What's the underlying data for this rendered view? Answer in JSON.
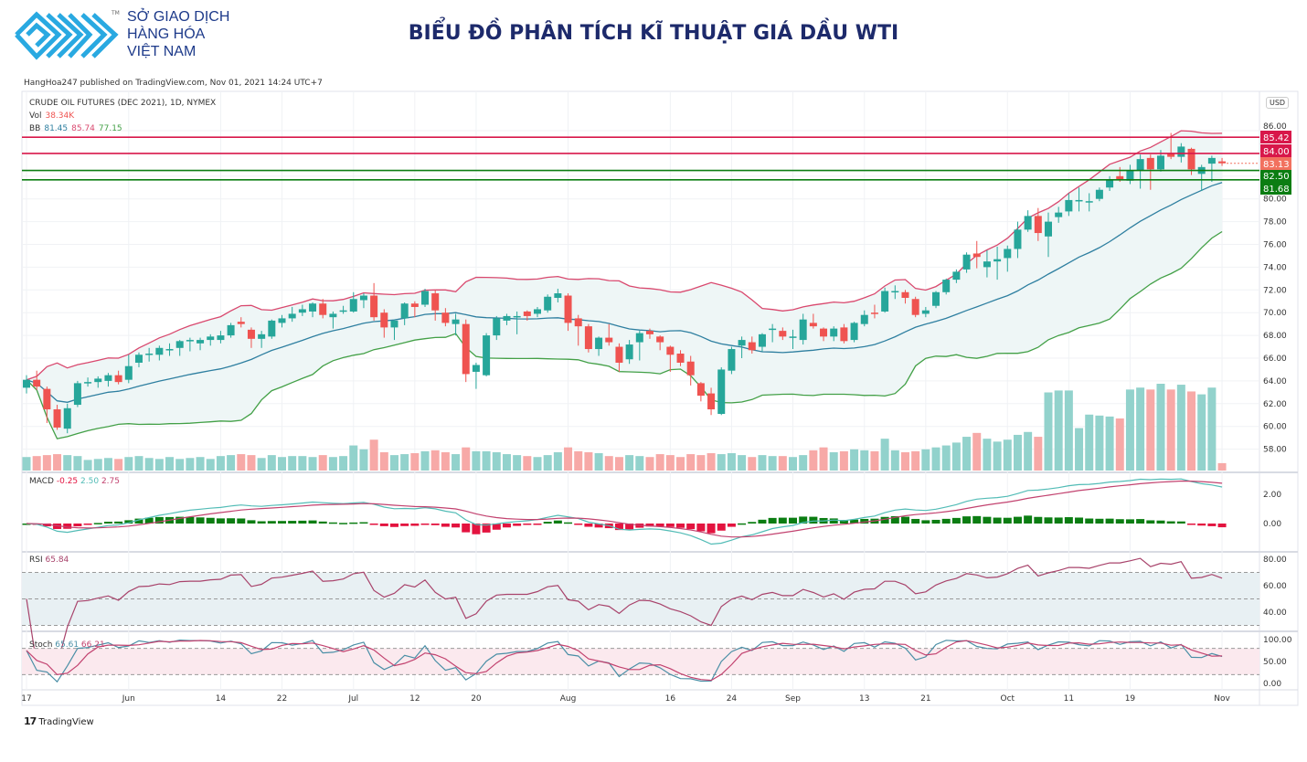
{
  "header": {
    "logo_text_line1": "SỞ GIAO DỊCH",
    "logo_text_line2": "HÀNG HÓA",
    "logo_text_line3": "VIỆT NAM",
    "logo_tm": "TM",
    "title": "BIỂU ĐỒ PHÂN TÍCH KĨ THUẬT GIÁ DẦU WTI",
    "published": "HangHoa247 published on TradingView.com, Nov 01, 2021 14:24 UTC+7"
  },
  "footer": {
    "brand": "TradingView",
    "brand_mark": "17"
  },
  "colors": {
    "up": "#26a69a",
    "down": "#ef5350",
    "vol_up": "#92d2cc",
    "vol_down": "#f7a9a7",
    "bb_upper": "#d9486e",
    "bb_basis": "#2e7fa0",
    "bb_lower": "#43a047",
    "bb_fill": "#eef6f6",
    "resistance": "#d8174a",
    "support": "#0b7d12",
    "macd": "#52bcb6",
    "signal": "#c2426f",
    "hist_pos": "#0b7d12",
    "hist_neg": "#e3133f",
    "rsi": "#a8436b",
    "stoch_k": "#4a8fa6",
    "stoch_d": "#c2426f"
  },
  "chart_data": {
    "type": "candlestick",
    "symbol": "CRUDE OIL FUTURES (DEC 2021), 1D, NYMEX",
    "currency": "USD",
    "legend": {
      "vol_label": "Vol",
      "vol_value": "38.34K",
      "bb_label": "BB",
      "bb_basis": "81.45",
      "bb_upper": "85.74",
      "bb_lower": "77.15",
      "macd_label": "MACD",
      "macd_hist": "-0.25",
      "macd_line": "2.50",
      "macd_signal": "2.75",
      "rsi_label": "RSI",
      "rsi_value": "65.84",
      "stoch_label": "Stoch",
      "stoch_k": "65.61",
      "stoch_d": "66.21"
    },
    "price_axis": {
      "ylim": [
        56.5,
        87
      ],
      "ticks": [
        "86.00",
        "80.00",
        "78.00",
        "76.00",
        "74.00",
        "72.00",
        "70.00",
        "68.00",
        "66.00",
        "64.00",
        "62.00",
        "60.00",
        "58.00"
      ]
    },
    "macd_axis": {
      "ticks": [
        "2.00",
        "0.00"
      ]
    },
    "rsi_axis": {
      "ticks": [
        "80.00",
        "60.00",
        "40.00"
      ],
      "bands": [
        70,
        50,
        30
      ]
    },
    "stoch_axis": {
      "ticks": [
        "100.00",
        "50.00",
        "0.00"
      ],
      "bands": [
        80,
        20
      ]
    },
    "levels": [
      {
        "value": 85.42,
        "label": "85.42",
        "kind": "resistance"
      },
      {
        "value": 84.0,
        "label": "84.00",
        "kind": "resistance"
      },
      {
        "value": 82.5,
        "label": "82.50",
        "kind": "support"
      },
      {
        "value": 81.68,
        "label": "81.68",
        "kind": "support"
      }
    ],
    "last_price": {
      "value": 83.13,
      "label": "83.13"
    },
    "x_labels": [
      {
        "label": "17",
        "at": 0
      },
      {
        "label": "Jun",
        "at": 10
      },
      {
        "label": "14",
        "at": 19
      },
      {
        "label": "22",
        "at": 25
      },
      {
        "label": "Jul",
        "at": 32
      },
      {
        "label": "12",
        "at": 38
      },
      {
        "label": "20",
        "at": 44
      },
      {
        "label": "Aug",
        "at": 53
      },
      {
        "label": "16",
        "at": 63
      },
      {
        "label": "24",
        "at": 69
      },
      {
        "label": "Sep",
        "at": 75
      },
      {
        "label": "13",
        "at": 82
      },
      {
        "label": "21",
        "at": 88
      },
      {
        "label": "Oct",
        "at": 96
      },
      {
        "label": "11",
        "at": 102
      },
      {
        "label": "19",
        "at": 108
      },
      {
        "label": "Nov",
        "at": 117
      }
    ],
    "ohlc": [
      [
        63.4,
        64.5,
        62.9,
        64.1
      ],
      [
        64.1,
        64.9,
        63.2,
        63.5
      ],
      [
        63.3,
        63.5,
        60.3,
        61.5
      ],
      [
        61.5,
        61.9,
        59.7,
        59.9
      ],
      [
        59.8,
        62.0,
        59.4,
        61.6
      ],
      [
        61.9,
        64.0,
        61.7,
        63.8
      ],
      [
        63.9,
        64.3,
        63.5,
        63.9
      ],
      [
        63.9,
        64.4,
        63.4,
        64.2
      ],
      [
        64.0,
        64.7,
        63.5,
        64.5
      ],
      [
        64.5,
        64.9,
        63.7,
        63.9
      ],
      [
        64.1,
        66.3,
        63.8,
        65.3
      ],
      [
        65.6,
        66.5,
        65.2,
        66.3
      ],
      [
        66.4,
        66.9,
        65.7,
        66.4
      ],
      [
        66.3,
        67.1,
        65.8,
        66.9
      ],
      [
        66.8,
        67.3,
        66.2,
        66.8
      ],
      [
        66.9,
        67.6,
        66.2,
        67.5
      ],
      [
        67.6,
        67.8,
        66.6,
        67.6
      ],
      [
        67.3,
        67.8,
        66.7,
        67.6
      ],
      [
        67.6,
        68.1,
        67.1,
        67.9
      ],
      [
        67.6,
        68.4,
        67.3,
        68.0
      ],
      [
        68.0,
        69.1,
        67.8,
        68.9
      ],
      [
        69.2,
        69.6,
        68.7,
        69.0
      ],
      [
        68.5,
        68.7,
        66.9,
        67.7
      ],
      [
        67.7,
        68.4,
        66.9,
        68.1
      ],
      [
        67.9,
        69.4,
        67.7,
        69.3
      ],
      [
        69.1,
        69.8,
        68.7,
        69.5
      ],
      [
        69.5,
        70.5,
        69.2,
        69.9
      ],
      [
        70.0,
        70.7,
        69.7,
        70.3
      ],
      [
        70.1,
        70.9,
        69.6,
        70.8
      ],
      [
        70.8,
        71.2,
        69.5,
        69.8
      ],
      [
        69.6,
        70.1,
        68.6,
        69.9
      ],
      [
        70.2,
        70.6,
        69.9,
        70.2
      ],
      [
        70.1,
        71.8,
        70.0,
        71.2
      ],
      [
        71.1,
        71.7,
        70.4,
        71.5
      ],
      [
        71.5,
        72.6,
        69.3,
        69.6
      ],
      [
        70.0,
        70.3,
        67.8,
        68.7
      ],
      [
        68.7,
        69.4,
        67.6,
        69.3
      ],
      [
        69.5,
        70.9,
        68.9,
        70.8
      ],
      [
        70.8,
        71.0,
        69.6,
        70.5
      ],
      [
        70.7,
        72.1,
        70.5,
        71.9
      ],
      [
        71.7,
        72.0,
        69.3,
        70.2
      ],
      [
        70.0,
        70.4,
        68.8,
        69.1
      ],
      [
        69.0,
        69.9,
        68.0,
        69.4
      ],
      [
        69.0,
        69.4,
        63.9,
        64.6
      ],
      [
        64.8,
        65.6,
        63.3,
        65.4
      ],
      [
        64.5,
        68.2,
        64.4,
        68.0
      ],
      [
        68.0,
        69.7,
        67.6,
        69.5
      ],
      [
        69.3,
        69.9,
        68.9,
        69.7
      ],
      [
        69.7,
        70.1,
        68.1,
        69.7
      ],
      [
        70.1,
        70.2,
        69.3,
        69.7
      ],
      [
        69.9,
        70.5,
        69.6,
        70.3
      ],
      [
        70.2,
        71.6,
        70.0,
        71.4
      ],
      [
        71.3,
        72.1,
        70.9,
        71.7
      ],
      [
        71.5,
        71.7,
        68.4,
        69.1
      ],
      [
        69.5,
        69.8,
        67.1,
        68.8
      ],
      [
        68.8,
        69.0,
        66.5,
        66.8
      ],
      [
        66.8,
        67.9,
        66.2,
        67.8
      ],
      [
        67.8,
        69.0,
        67.1,
        67.4
      ],
      [
        67.0,
        67.3,
        64.8,
        65.6
      ],
      [
        65.9,
        67.6,
        65.5,
        67.2
      ],
      [
        67.4,
        68.4,
        65.8,
        68.2
      ],
      [
        68.4,
        68.6,
        67.7,
        68.1
      ],
      [
        67.9,
        68.0,
        66.7,
        67.4
      ],
      [
        67.0,
        67.1,
        64.8,
        66.3
      ],
      [
        66.4,
        66.7,
        65.3,
        65.6
      ],
      [
        65.7,
        66.2,
        63.6,
        64.5
      ],
      [
        63.8,
        63.9,
        62.2,
        62.7
      ],
      [
        62.9,
        63.4,
        61.0,
        61.5
      ],
      [
        61.1,
        65.2,
        61.0,
        65.0
      ],
      [
        64.9,
        67.0,
        64.6,
        66.8
      ],
      [
        67.1,
        67.9,
        66.0,
        67.6
      ],
      [
        67.4,
        67.9,
        66.4,
        66.7
      ],
      [
        67.0,
        68.2,
        66.6,
        68.1
      ],
      [
        68.5,
        69.0,
        67.4,
        68.6
      ],
      [
        68.4,
        68.7,
        67.6,
        67.9
      ],
      [
        67.9,
        68.5,
        66.8,
        67.9
      ],
      [
        67.6,
        69.9,
        67.2,
        69.4
      ],
      [
        69.1,
        69.9,
        68.6,
        68.8
      ],
      [
        68.6,
        68.7,
        67.5,
        67.9
      ],
      [
        67.9,
        68.8,
        67.5,
        68.6
      ],
      [
        68.7,
        69.0,
        67.3,
        67.5
      ],
      [
        67.6,
        69.2,
        67.4,
        69.1
      ],
      [
        69.0,
        70.2,
        68.8,
        69.8
      ],
      [
        70.0,
        70.7,
        69.5,
        69.9
      ],
      [
        70.1,
        72.2,
        70.0,
        71.9
      ],
      [
        71.9,
        72.4,
        71.2,
        71.9
      ],
      [
        71.8,
        72.0,
        70.8,
        71.3
      ],
      [
        71.2,
        71.4,
        69.6,
        69.8
      ],
      [
        69.9,
        70.5,
        69.6,
        70.2
      ],
      [
        70.6,
        71.9,
        70.4,
        71.8
      ],
      [
        71.8,
        73.0,
        71.6,
        72.9
      ],
      [
        72.9,
        73.8,
        72.6,
        73.6
      ],
      [
        73.8,
        75.3,
        73.5,
        75.1
      ],
      [
        75.2,
        76.3,
        73.9,
        74.9
      ],
      [
        74.0,
        75.5,
        73.1,
        74.5
      ],
      [
        74.5,
        75.8,
        72.9,
        74.7
      ],
      [
        74.8,
        75.9,
        73.6,
        75.6
      ],
      [
        75.6,
        78.0,
        74.8,
        77.3
      ],
      [
        77.3,
        79.0,
        77.1,
        78.5
      ],
      [
        78.5,
        79.2,
        76.3,
        77.0
      ],
      [
        76.7,
        78.8,
        74.9,
        78.0
      ],
      [
        78.4,
        79.3,
        77.9,
        78.8
      ],
      [
        78.9,
        80.5,
        78.5,
        79.9
      ],
      [
        79.9,
        81.0,
        78.9,
        79.9
      ],
      [
        79.8,
        80.5,
        78.9,
        79.8
      ],
      [
        80.0,
        81.0,
        79.8,
        80.8
      ],
      [
        81.0,
        82.0,
        80.7,
        81.7
      ],
      [
        82.0,
        82.8,
        81.5,
        81.7
      ],
      [
        81.6,
        83.0,
        81.3,
        82.5
      ],
      [
        82.5,
        83.9,
        80.9,
        83.5
      ],
      [
        83.6,
        83.9,
        80.8,
        82.6
      ],
      [
        82.6,
        84.3,
        82.4,
        83.8
      ],
      [
        84.0,
        85.8,
        83.5,
        83.7
      ],
      [
        83.7,
        84.9,
        83.2,
        84.6
      ],
      [
        84.4,
        84.5,
        82.1,
        82.6
      ],
      [
        82.2,
        83.0,
        80.7,
        82.8
      ],
      [
        83.1,
        83.8,
        81.5,
        83.6
      ],
      [
        83.3,
        83.6,
        82.9,
        83.13
      ]
    ],
    "volume_k": [
      70,
      75,
      80,
      85,
      80,
      75,
      55,
      60,
      65,
      60,
      70,
      75,
      65,
      60,
      70,
      60,
      65,
      70,
      60,
      75,
      80,
      85,
      80,
      65,
      80,
      70,
      75,
      75,
      70,
      80,
      70,
      75,
      130,
      110,
      160,
      95,
      80,
      85,
      90,
      100,
      105,
      95,
      85,
      120,
      100,
      100,
      95,
      85,
      80,
      75,
      70,
      80,
      95,
      120,
      100,
      95,
      90,
      75,
      70,
      80,
      75,
      70,
      85,
      80,
      70,
      85,
      80,
      90,
      85,
      90,
      80,
      70,
      80,
      75,
      75,
      70,
      80,
      105,
      120,
      95,
      100,
      110,
      105,
      100,
      165,
      105,
      95,
      100,
      110,
      120,
      130,
      145,
      175,
      195,
      165,
      150,
      160,
      185,
      200,
      175,
      405,
      415,
      415,
      220,
      290,
      285,
      280,
      270,
      420,
      430,
      420,
      450,
      420,
      445,
      410,
      395,
      430,
      38.34
    ]
  }
}
